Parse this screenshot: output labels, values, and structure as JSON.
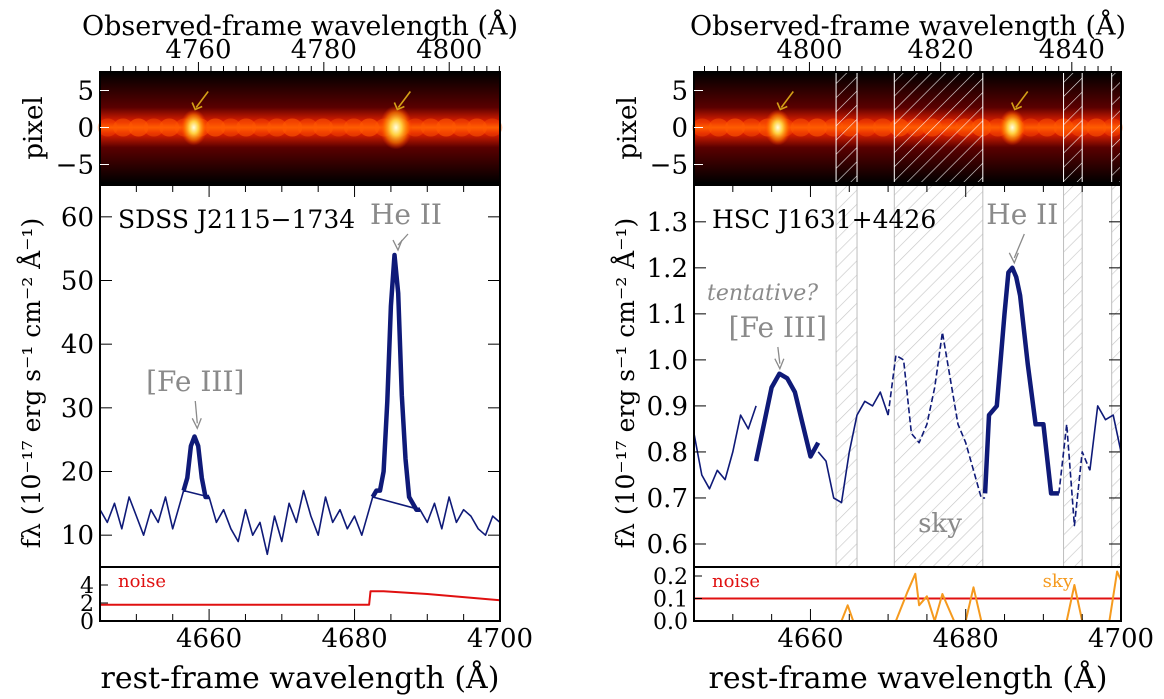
{
  "chart_data": [
    {
      "type": "line",
      "panel": "left",
      "object_label": "SDSS J2115−1734",
      "top_axis": {
        "label": "Observed-frame wavelength (Å)",
        "ticks": [
          4760,
          4780,
          4800
        ],
        "xlim": [
          4744.3,
          4808.1
        ]
      },
      "image_axis": {
        "ylabel": "pixel",
        "ticks": [
          5,
          0,
          -5
        ],
        "ylim": [
          -7.5,
          7.5
        ],
        "bright_spots": [
          4657.9,
          4685.7
        ],
        "arrow_positions": [
          4658.5,
          4686.3
        ]
      },
      "main_axis": {
        "ylabel": "fλ (10⁻¹⁷ erg s⁻¹ cm⁻² Å⁻¹)",
        "xlim": [
          4645,
          4700
        ],
        "ylim": [
          5,
          65
        ],
        "yticks": [
          10,
          20,
          30,
          40,
          50,
          60
        ],
        "lines": [
          {
            "label": "[Fe III]",
            "x": 4658.1,
            "y": 26
          },
          {
            "label": "He II",
            "x": 4685.7,
            "y": 54
          }
        ],
        "series": [
          {
            "style": "thin",
            "x": [
              4645,
              4646,
              4647,
              4648,
              4649,
              4650,
              4651,
              4652,
              4653,
              4654,
              4655,
              4656,
              4656.5,
              4660,
              4661,
              4662,
              4663,
              4664,
              4665,
              4666,
              4667,
              4668,
              4669,
              4670,
              4671,
              4672,
              4673,
              4674,
              4675,
              4676,
              4677,
              4678,
              4679,
              4680,
              4681,
              4682.5,
              4689,
              4690,
              4691,
              4692,
              4693,
              4694,
              4695,
              4696,
              4697,
              4698,
              4699,
              4700
            ],
            "y": [
              14,
              12,
              15,
              11,
              16,
              13,
              10,
              14,
              12,
              16,
              11,
              15,
              17,
              16,
              12,
              14,
              11,
              9,
              14,
              10,
              12,
              7,
              13,
              9,
              15,
              12,
              17,
              13,
              10,
              16,
              12,
              14,
              11,
              13,
              10,
              16,
              14,
              12,
              15,
              11,
              16,
              12,
              14,
              13,
              11,
              10,
              13,
              12
            ]
          },
          {
            "style": "thick",
            "x": [
              4656.5,
              4657,
              4657.5,
              4658,
              4658.5,
              4659,
              4659.5,
              4660
            ],
            "y": [
              17,
              19,
              24,
              25.5,
              24,
              19,
              16,
              16
            ]
          },
          {
            "style": "thick",
            "x": [
              4682.5,
              4683,
              4683.5,
              4684,
              4684.5,
              4685,
              4685.5,
              4686,
              4686.5,
              4687,
              4687.5,
              4688,
              4688.5,
              4689
            ],
            "y": [
              16,
              17,
              17,
              20,
              31,
              46,
              54,
              48,
              32,
              22,
              16,
              15,
              14,
              14
            ]
          }
        ]
      },
      "noise_axis": {
        "legend": "noise",
        "ylim": [
          0,
          6
        ],
        "yticks": [
          0,
          2,
          4
        ],
        "series": [
          {
            "name": "noise",
            "x": [
              4645,
              4682,
              4682.2,
              4684,
              4690,
              4700
            ],
            "y": [
              1.8,
              1.8,
              3.3,
              3.3,
              3.0,
              2.3
            ]
          }
        ]
      },
      "xlabel": "rest-frame wavelength (Å)",
      "xticks": [
        4660,
        4680,
        4700
      ]
    },
    {
      "type": "line",
      "panel": "right",
      "object_label": "HSC J1631+4426",
      "top_axis": {
        "label": "Observed-frame wavelength (Å)",
        "ticks": [
          4800,
          4820,
          4840
        ],
        "xlim": [
          4782.4,
          4847.5
        ]
      },
      "image_axis": {
        "ylabel": "pixel",
        "ticks": [
          5,
          0,
          -5
        ],
        "ylim": [
          -7.5,
          7.5
        ],
        "bright_spots": [
          4655.8,
          4686.0
        ],
        "arrow_positions": [
          4656.5,
          4686.7
        ],
        "masked_bands": [
          [
            4663.3,
            4666
          ],
          [
            4670.8,
            4682.2
          ],
          [
            4692.6,
            4695
          ],
          [
            4698.8,
            4700
          ]
        ]
      },
      "main_axis": {
        "ylabel": "fλ (10⁻¹⁷ erg s⁻¹ cm⁻² Å⁻¹)",
        "xlim": [
          4645,
          4700
        ],
        "ylim": [
          0.55,
          1.38
        ],
        "yticks": [
          0.6,
          0.7,
          0.8,
          0.9,
          1.0,
          1.1,
          1.2,
          1.3
        ],
        "masked_bands": [
          [
            4663.3,
            4666
          ],
          [
            4670.8,
            4682.2
          ],
          [
            4692.6,
            4695
          ],
          [
            4698.8,
            4700
          ]
        ],
        "band_label": "sky",
        "annotation": "tentative?",
        "lines": [
          {
            "label": "[Fe III]",
            "x": 4655.8,
            "y": 0.97
          },
          {
            "label": "He II",
            "x": 4686.0,
            "y": 1.2
          }
        ],
        "series": [
          {
            "style": "thin",
            "x": [
              4645,
              4646,
              4647,
              4648,
              4649,
              4650,
              4651,
              4652,
              4653
            ],
            "y": [
              0.84,
              0.75,
              0.72,
              0.76,
              0.74,
              0.8,
              0.88,
              0.85,
              0.9
            ]
          },
          {
            "style": "thick",
            "x": [
              4653,
              4654,
              4655,
              4656,
              4657,
              4658,
              4659,
              4660,
              4661
            ],
            "y": [
              0.78,
              0.86,
              0.94,
              0.97,
              0.96,
              0.93,
              0.86,
              0.79,
              0.82
            ]
          },
          {
            "style": "thin",
            "x": [
              4661,
              4662,
              4663,
              4664,
              4665,
              4666,
              4667,
              4668,
              4669,
              4670
            ],
            "y": [
              0.8,
              0.78,
              0.7,
              0.69,
              0.8,
              0.88,
              0.91,
              0.9,
              0.93,
              0.88
            ]
          },
          {
            "style": "dashed",
            "x": [
              4670,
              4671,
              4672,
              4673,
              4674,
              4675,
              4676,
              4677,
              4678,
              4679,
              4680,
              4681,
              4682,
              4682.5
            ],
            "y": [
              0.88,
              1.01,
              1.0,
              0.84,
              0.82,
              0.86,
              0.94,
              1.06,
              0.96,
              0.86,
              0.82,
              0.76,
              0.7,
              0.7
            ]
          },
          {
            "style": "thick",
            "x": [
              4682.5,
              4683,
              4684,
              4685,
              4685.5,
              4686,
              4686.5,
              4687,
              4688,
              4689,
              4690,
              4691,
              4692
            ],
            "y": [
              0.71,
              0.88,
              0.9,
              1.1,
              1.19,
              1.2,
              1.18,
              1.14,
              0.99,
              0.86,
              0.86,
              0.71,
              0.71
            ]
          },
          {
            "style": "dashed",
            "x": [
              4692,
              4693,
              4694,
              4695,
              4696
            ],
            "y": [
              0.71,
              0.86,
              0.64,
              0.8,
              0.76
            ]
          },
          {
            "style": "thin",
            "x": [
              4696,
              4697,
              4698,
              4699,
              4700
            ],
            "y": [
              0.76,
              0.9,
              0.87,
              0.88,
              0.8
            ]
          }
        ]
      },
      "noise_axis": {
        "legend": "noise",
        "legend2": "sky",
        "ylim": [
          0,
          0.24
        ],
        "yticks": [
          0.0,
          0.1,
          0.2
        ],
        "series": [
          {
            "name": "noise",
            "x": [
              4645,
              4700
            ],
            "y": [
              0.1,
              0.1
            ]
          },
          {
            "name": "sky",
            "x": [
              4664,
              4664.8,
              4665.5,
              4671,
              4672.5,
              4673.5,
              4674,
              4675,
              4676,
              4677,
              4678.5,
              4680,
              4681,
              4682,
              4693,
              4694,
              4695,
              4698.5,
              4699.5,
              4700
            ],
            "y": [
              0,
              0.07,
              0,
              0,
              0.13,
              0.21,
              0.07,
              0.11,
              0,
              0.12,
              0,
              0,
              0.15,
              0,
              0,
              0.16,
              0,
              0,
              0.22,
              0.18
            ]
          }
        ]
      },
      "xlabel": "rest-frame wavelength (Å)",
      "xticks": [
        4660,
        4680,
        4700
      ]
    }
  ],
  "colors": {
    "spectrum": "#0f1a78",
    "raw": "#9fd2e8",
    "noise": "#e01010",
    "sky": "#f59a1e",
    "annotation": "#8a8a8a",
    "arrow": "#d4a017"
  }
}
